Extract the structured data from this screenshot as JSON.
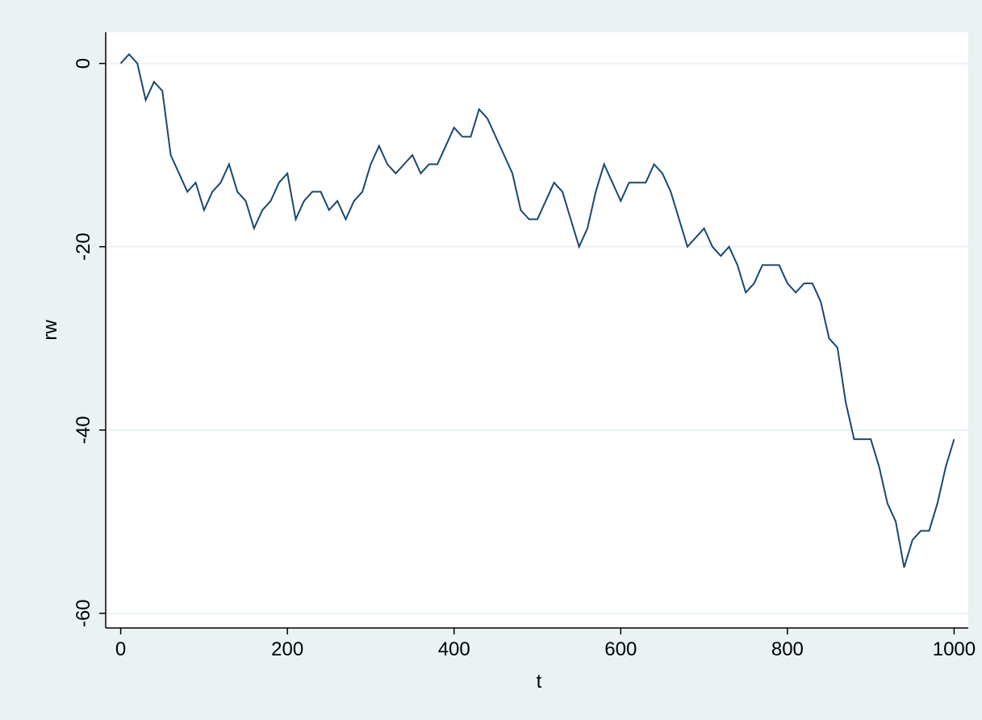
{
  "chart_data": {
    "type": "line",
    "x_label": "t",
    "y_label": "rw",
    "x": [
      0,
      10,
      20,
      30,
      40,
      50,
      60,
      70,
      80,
      90,
      100,
      110,
      120,
      130,
      140,
      150,
      160,
      170,
      180,
      190,
      200,
      210,
      220,
      230,
      240,
      250,
      260,
      270,
      280,
      290,
      300,
      310,
      320,
      330,
      340,
      350,
      360,
      370,
      380,
      390,
      400,
      410,
      420,
      430,
      440,
      450,
      460,
      470,
      480,
      490,
      500,
      510,
      520,
      530,
      540,
      550,
      560,
      570,
      580,
      590,
      600,
      610,
      620,
      630,
      640,
      650,
      660,
      670,
      680,
      690,
      700,
      710,
      720,
      730,
      740,
      750,
      760,
      770,
      780,
      790,
      800,
      810,
      820,
      830,
      840,
      850,
      860,
      870,
      880,
      890,
      900,
      910,
      920,
      930,
      940,
      950,
      960,
      970,
      980,
      990,
      1000
    ],
    "series": [
      {
        "name": "rw",
        "color": "#1a476f",
        "values": [
          0,
          1,
          0,
          -4,
          -2,
          -3,
          -10,
          -12,
          -14,
          -13,
          -16,
          -14,
          -13,
          -11,
          -14,
          -15,
          -18,
          -16,
          -15,
          -13,
          -12,
          -17,
          -15,
          -14,
          -14,
          -16,
          -15,
          -17,
          -15,
          -14,
          -11,
          -9,
          -11,
          -12,
          -11,
          -10,
          -12,
          -11,
          -11,
          -9,
          -7,
          -8,
          -8,
          -5,
          -6,
          -8,
          -10,
          -12,
          -16,
          -17,
          -17,
          -15,
          -13,
          -14,
          -17,
          -20,
          -18,
          -14,
          -11,
          -13,
          -15,
          -13,
          -13,
          -13,
          -11,
          -12,
          -14,
          -17,
          -20,
          -19,
          -18,
          -20,
          -21,
          -20,
          -22,
          -25,
          -24,
          -22,
          -22,
          -22,
          -24,
          -25,
          -24,
          -24,
          -26,
          -30,
          -31,
          -37,
          -41,
          -41,
          -41,
          -44,
          -48,
          -50,
          -55,
          -52,
          -51,
          -51,
          -48,
          -44,
          -41
        ]
      }
    ],
    "xlim": [
      -18,
      1017
    ],
    "ylim": [
      -61.6,
      3.4
    ],
    "xticks": [
      0,
      200,
      400,
      600,
      800,
      1000
    ],
    "yticks": [
      0,
      -20,
      -40,
      -60
    ],
    "grid": true
  }
}
